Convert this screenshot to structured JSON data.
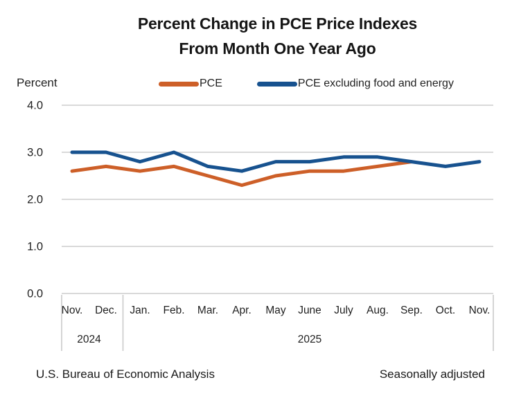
{
  "figure": {
    "title_line1": "Percent Change in PCE Price Indexes",
    "title_line2": "From Month One Year Ago"
  },
  "legend": {
    "items": [
      {
        "label": "PCE",
        "color": "#CD5F28"
      },
      {
        "label": "PCE excluding food and energy",
        "color": "#17528F"
      }
    ]
  },
  "footer": {
    "source": "U.S. Bureau of Economic Analysis",
    "note": "Seasonally adjusted"
  },
  "chart_data": {
    "type": "line",
    "title": "Percent Change in PCE Price Indexes From Month One Year Ago",
    "ylabel": "Percent",
    "x": [
      "Nov.",
      "Dec.",
      "Jan.",
      "Feb.",
      "Mar.",
      "Apr.",
      "May",
      "June",
      "July",
      "Aug.",
      "Sep.",
      "Oct.",
      "Nov."
    ],
    "x_year_groups": [
      {
        "label": "2024",
        "from_index": 0,
        "to_index": 1
      },
      {
        "label": "2025",
        "from_index": 2,
        "to_index": 12
      }
    ],
    "series": [
      {
        "name": "PCE",
        "color": "#CD5F28",
        "values": [
          2.6,
          2.7,
          2.6,
          2.7,
          2.5,
          2.3,
          2.5,
          2.6,
          2.6,
          2.7,
          2.8,
          null,
          null
        ]
      },
      {
        "name": "PCE excluding food and energy",
        "color": "#17528F",
        "values": [
          3.0,
          3.0,
          2.8,
          3.0,
          2.7,
          2.6,
          2.8,
          2.8,
          2.9,
          2.9,
          2.8,
          2.7,
          2.8
        ]
      }
    ],
    "yticks": [
      0.0,
      1.0,
      2.0,
      3.0,
      4.0
    ],
    "ytick_labels": [
      "0.0",
      "1.0",
      "2.0",
      "3.0",
      "4.0"
    ],
    "ylim": [
      0.0,
      4.0
    ],
    "grid": true,
    "legend_position": "top",
    "gridline_color": "#D9D9D9",
    "axis_divider_color": "#C6C6C6",
    "text_color": "#1F1F1F"
  }
}
